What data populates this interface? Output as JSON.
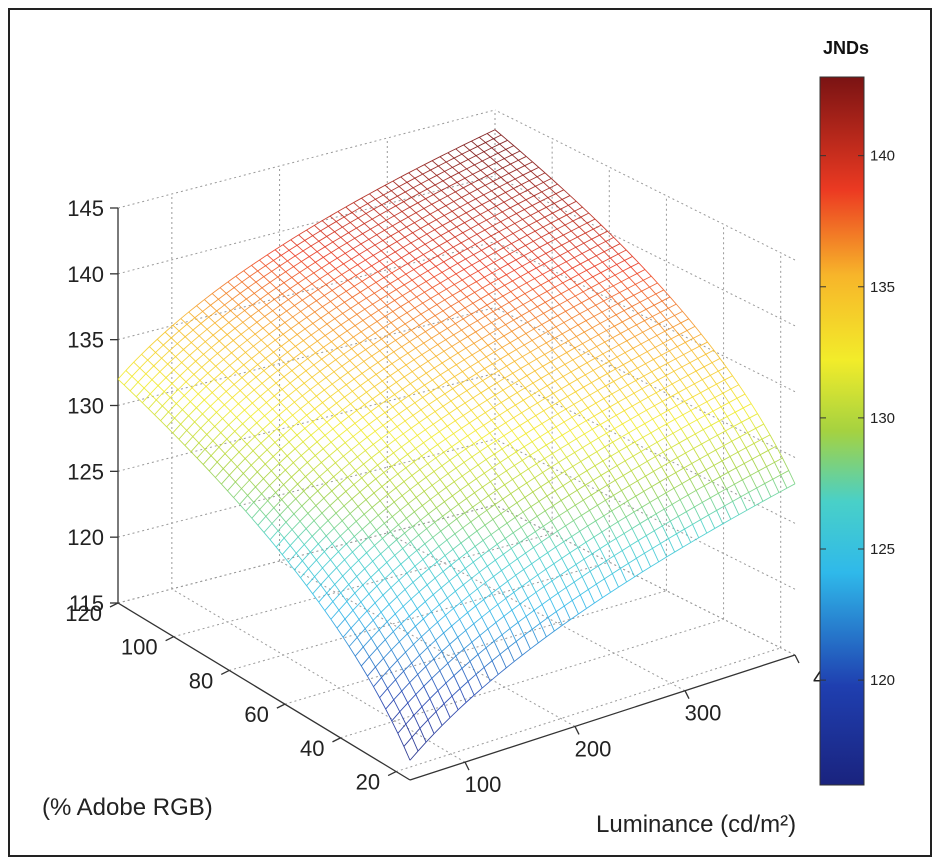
{
  "chart_data": {
    "type": "surface",
    "title": "",
    "xlabel": "Luminance (cd/m²)",
    "ylabel": "(% Adobe RGB)",
    "zlabel": "",
    "colorbar_label": "JNDs",
    "x_ticks": [
      "100",
      "200",
      "300",
      "4"
    ],
    "y_ticks": [
      "20",
      "40",
      "60",
      "80",
      "100",
      "120"
    ],
    "z_ticks": [
      "115",
      "120",
      "125",
      "130",
      "135",
      "140",
      "145"
    ],
    "colorbar_ticks": [
      "120",
      "125",
      "130",
      "135",
      "140"
    ],
    "xlim": [
      50,
      400
    ],
    "ylim": [
      15,
      120
    ],
    "zlim": [
      115,
      145
    ],
    "colorbar_range": [
      116,
      143
    ],
    "colormap": "jet",
    "grid": true,
    "surface_corners": [
      {
        "x": 50,
        "y": 15,
        "z": 116.5
      },
      {
        "x": 400,
        "y": 15,
        "z": 128
      },
      {
        "x": 50,
        "y": 120,
        "z": 132
      },
      {
        "x": 400,
        "y": 120,
        "z": 143
      }
    ]
  }
}
